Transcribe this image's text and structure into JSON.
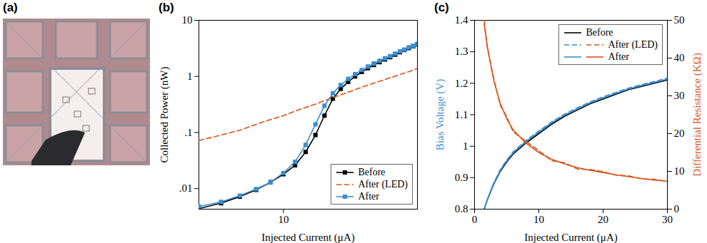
{
  "chart_data": [
    {
      "type": "image",
      "title": "(a)"
    },
    {
      "type": "line",
      "title": "(b)",
      "xlabel": "Injected Current (μA)",
      "ylabel": "Collected Power (nW)",
      "log": true,
      "x": [
        5,
        6,
        7,
        8,
        9,
        10,
        11,
        12,
        13,
        14,
        15,
        16,
        17,
        18,
        19,
        20,
        21,
        22,
        23,
        24,
        25,
        26,
        27,
        28,
        29,
        30
      ],
      "xlim": [
        5,
        30
      ],
      "xticks": [
        10
      ],
      "ylim": [
        0.0043,
        10
      ],
      "yticks": [
        {
          "value": 0.01,
          "label": ".01"
        },
        {
          "value": 0.1,
          "label": ".1"
        },
        1,
        10
      ],
      "legend": "lower right",
      "series": [
        {
          "name": "Before",
          "color": "#000000",
          "marker": "square",
          "line_style": "solid",
          "values": [
            0.0044,
            0.0055,
            0.0072,
            0.0095,
            0.013,
            0.018,
            0.026,
            0.045,
            0.09,
            0.2,
            0.4,
            0.6,
            0.8,
            1.0,
            1.2,
            1.4,
            1.6,
            1.8,
            2.0,
            2.2,
            2.45,
            2.7,
            2.95,
            3.2,
            3.45,
            3.7
          ]
        },
        {
          "name": "After (LED)",
          "color": "#d95319",
          "line_style": "dashed",
          "values": [
            0.072,
            0.09,
            0.11,
            0.14,
            0.17,
            0.2,
            0.24,
            0.28,
            0.32,
            0.37,
            0.42,
            0.47,
            0.52,
            0.58,
            0.64,
            0.7,
            0.76,
            0.82,
            0.88,
            0.95,
            1.01,
            1.08,
            1.15,
            1.22,
            1.3,
            1.38
          ]
        },
        {
          "name": "After",
          "color": "#3b8fd0",
          "marker": "square",
          "line_style": "solid",
          "values": [
            0.0048,
            0.0058,
            0.0075,
            0.0098,
            0.013,
            0.019,
            0.03,
            0.06,
            0.14,
            0.3,
            0.5,
            0.7,
            0.9,
            1.1,
            1.3,
            1.5,
            1.7,
            1.9,
            2.1,
            2.3,
            2.55,
            2.8,
            3.0,
            3.3,
            3.5,
            3.8
          ]
        }
      ]
    },
    {
      "type": "line",
      "title": "(c)",
      "xlabel": "Injected Current (μA)",
      "ylabel": "Bias Voltage (V)",
      "y2label": "Differential Resistance (KΩ)",
      "x": [
        1.5,
        2,
        3,
        4,
        5,
        6,
        8,
        10,
        12,
        14,
        16,
        18,
        20,
        22,
        24,
        26,
        28,
        30
      ],
      "xlim": [
        0,
        30
      ],
      "xticks": [
        0,
        10,
        20,
        30
      ],
      "ylim": [
        0.8,
        1.4
      ],
      "yticks": [
        0.8,
        0.9,
        1,
        1.1,
        1.2,
        1.3,
        1.4
      ],
      "y2lim": [
        0,
        50
      ],
      "y2ticks": [
        0,
        10,
        20,
        30,
        40,
        50
      ],
      "legend": "upper right",
      "series": [
        {
          "name": "Before",
          "color": "#000000",
          "line_style": "solid",
          "values": [
            0.8,
            0.83,
            0.88,
            0.92,
            0.95,
            0.975,
            1.01,
            1.04,
            1.07,
            1.095,
            1.115,
            1.135,
            1.15,
            1.165,
            1.18,
            1.19,
            1.2,
            1.21
          ]
        },
        {
          "name": "After (LED)",
          "color": "#3b8fd0",
          "line_style": "dashed",
          "values": [
            0.8,
            0.832,
            0.884,
            0.925,
            0.956,
            0.982,
            1.018,
            1.048,
            1.077,
            1.102,
            1.122,
            1.141,
            1.157,
            1.171,
            1.185,
            1.196,
            1.206,
            1.216
          ]
        },
        {
          "name": "After",
          "color": "#3b8fd0",
          "line_style": "solid",
          "values": [
            0.8,
            0.831,
            0.882,
            0.923,
            0.953,
            0.979,
            1.015,
            1.045,
            1.074,
            1.099,
            1.119,
            1.138,
            1.154,
            1.168,
            1.182,
            1.193,
            1.203,
            1.213
          ]
        },
        {
          "name": "After (LED)",
          "color": "#d95319",
          "line_style": "dashed",
          "axis": "y2",
          "values": [
            50,
            42.5,
            34.5,
            27.5,
            24.5,
            20.5,
            18,
            15.5,
            12.8,
            12.3,
            10.6,
            10.5,
            9.9,
            9.0,
            8.8,
            8.0,
            7.9,
            7.3
          ]
        },
        {
          "name": "After",
          "color": "#d95319",
          "line_style": "solid",
          "axis": "y2",
          "values": [
            49,
            43,
            34,
            28,
            24,
            21,
            17.5,
            15,
            13.2,
            12,
            11,
            10.3,
            9.7,
            9.1,
            8.6,
            8.1,
            7.7,
            7.4
          ]
        }
      ]
    }
  ]
}
